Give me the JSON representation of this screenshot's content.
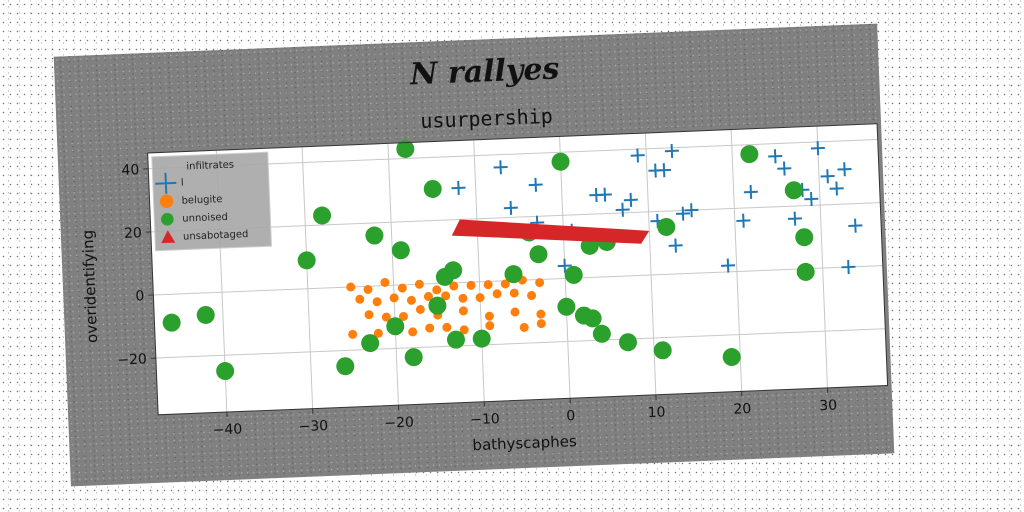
{
  "chart_data": {
    "type": "scatter",
    "suptitle": "N rallyes",
    "title": "usurpership",
    "xlabel": "bathyscaphes",
    "ylabel": "overidentifying",
    "xlim": [
      -48,
      37
    ],
    "ylim": [
      -38,
      45
    ],
    "xticks": [
      -40,
      -30,
      -20,
      -10,
      0,
      10,
      20,
      30
    ],
    "yticks": [
      -20,
      0,
      20,
      40
    ],
    "grid": true,
    "legend": {
      "title": "infiltrates",
      "placement": "top-left"
    },
    "colors": {
      "l": "#1f77b4",
      "belugite": "#ff7f0e",
      "unnoised": "#2ca02c",
      "unsabotaged": "#d62728"
    },
    "series": [
      {
        "name": "l",
        "marker": "plus",
        "points": [
          [
            -12,
            30
          ],
          [
            -7,
            36
          ],
          [
            -3,
            30
          ],
          [
            -6,
            23
          ],
          [
            -3,
            18
          ],
          [
            1,
            15
          ],
          [
            0,
            4
          ],
          [
            4,
            26
          ],
          [
            5,
            26
          ],
          [
            7,
            21
          ],
          [
            8,
            24
          ],
          [
            9,
            38
          ],
          [
            11,
            33
          ],
          [
            12,
            33
          ],
          [
            13,
            39
          ],
          [
            14,
            19
          ],
          [
            11,
            17
          ],
          [
            13,
            9
          ],
          [
            15,
            20
          ],
          [
            19,
            2
          ],
          [
            21,
            16
          ],
          [
            22,
            25
          ],
          [
            25,
            36
          ],
          [
            26,
            32
          ],
          [
            27,
            16
          ],
          [
            28,
            25
          ],
          [
            29,
            22
          ],
          [
            30,
            38
          ],
          [
            31,
            29
          ],
          [
            32,
            25
          ],
          [
            33,
            31
          ],
          [
            34,
            13
          ],
          [
            33,
            0
          ]
        ]
      },
      {
        "name": "belugite",
        "marker": "circle-small",
        "points": [
          [
            -25,
            0
          ],
          [
            -23,
            -1
          ],
          [
            -21,
            1
          ],
          [
            -19,
            -1
          ],
          [
            -17,
            0
          ],
          [
            -15,
            -2
          ],
          [
            -13,
            -1
          ],
          [
            -11,
            -1
          ],
          [
            -9,
            -1
          ],
          [
            -7,
            -1
          ],
          [
            -5,
            0
          ],
          [
            -3,
            -1
          ],
          [
            -24,
            -4
          ],
          [
            -22,
            -5
          ],
          [
            -20,
            -4
          ],
          [
            -18,
            -5
          ],
          [
            -16,
            -4
          ],
          [
            -14,
            -4
          ],
          [
            -12,
            -5
          ],
          [
            -10,
            -5
          ],
          [
            -8,
            -4
          ],
          [
            -6,
            -4
          ],
          [
            -4,
            -5
          ],
          [
            -23,
            -9
          ],
          [
            -21,
            -10
          ],
          [
            -19,
            -10
          ],
          [
            -17,
            -8
          ],
          [
            -15,
            -10
          ],
          [
            -12,
            -9
          ],
          [
            -9,
            -11
          ],
          [
            -6,
            -10
          ],
          [
            -3,
            -11
          ],
          [
            -25,
            -15
          ],
          [
            -22,
            -15
          ],
          [
            -20,
            -14
          ],
          [
            -18,
            -15
          ],
          [
            -16,
            -14
          ],
          [
            -14,
            -14
          ],
          [
            -12,
            -15
          ],
          [
            -9,
            -14
          ],
          [
            -5,
            -15
          ],
          [
            -3,
            -14
          ]
        ]
      },
      {
        "name": "unnoised",
        "marker": "circle",
        "points": [
          [
            -18,
            43
          ],
          [
            -28,
            23
          ],
          [
            -15,
            30
          ],
          [
            -22,
            16
          ],
          [
            -19,
            11
          ],
          [
            -30,
            9
          ],
          [
            -46,
            -9
          ],
          [
            -42,
            -7
          ],
          [
            -40,
            -25
          ],
          [
            -26,
            -25
          ],
          [
            -23,
            -18
          ],
          [
            -20,
            -13
          ],
          [
            -18,
            -23
          ],
          [
            -14,
            2
          ],
          [
            -13,
            4
          ],
          [
            -15,
            -7
          ],
          [
            -13,
            -18
          ],
          [
            -10,
            -18
          ],
          [
            -6,
            2
          ],
          [
            -3,
            8
          ],
          [
            1,
            1
          ],
          [
            0,
            -9
          ],
          [
            2,
            -12
          ],
          [
            3,
            -13
          ],
          [
            4,
            -18
          ],
          [
            7,
            -21
          ],
          [
            11,
            -24
          ],
          [
            -4,
            15
          ],
          [
            0,
            37
          ],
          [
            3,
            10
          ],
          [
            5,
            11
          ],
          [
            12,
            15
          ],
          [
            22,
            37
          ],
          [
            27,
            25
          ],
          [
            28,
            10
          ],
          [
            28,
            -1
          ],
          [
            19,
            -27
          ]
        ]
      },
      {
        "name": "unsabotaged",
        "marker": "polygon",
        "points": [
          [
            -12,
            20
          ],
          [
            -13,
            15
          ],
          [
            9,
            10
          ],
          [
            10,
            14
          ]
        ]
      }
    ]
  }
}
